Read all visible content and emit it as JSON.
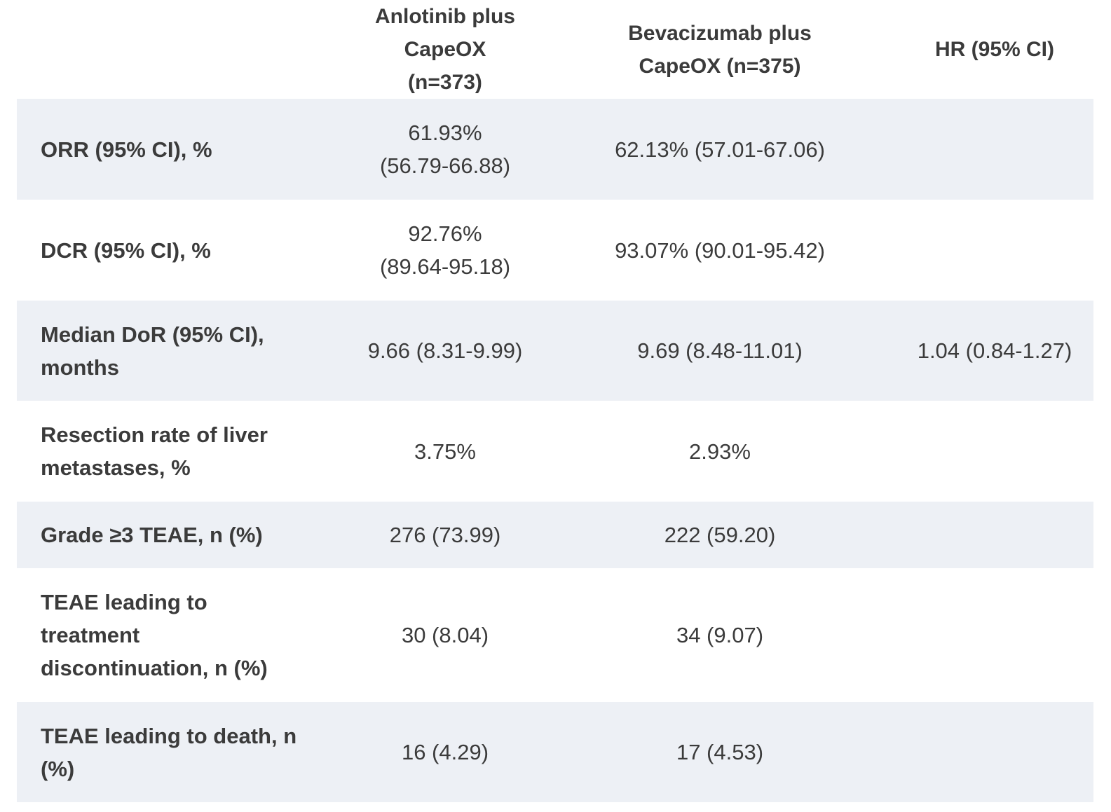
{
  "table": {
    "headers": [
      "",
      "Anlotinib plus CapeOX (n=373)",
      "Bevacizumab plus CapeOX (n=375)",
      "HR (95% CI)"
    ],
    "rows": [
      {
        "label": "ORR (95% CI), %",
        "anlotinib": "61.93% (56.79-66.88)",
        "bevacizumab": "62.13% (57.01-67.06)",
        "hr": ""
      },
      {
        "label": "DCR (95% CI), %",
        "anlotinib": "92.76% (89.64-95.18)",
        "bevacizumab": "93.07% (90.01-95.42)",
        "hr": ""
      },
      {
        "label": "Median DoR (95% CI), months",
        "anlotinib": "9.66 (8.31-9.99)",
        "bevacizumab": "9.69 (8.48-11.01)",
        "hr": "1.04 (0.84-1.27)"
      },
      {
        "label": "Resection rate of liver metastases, %",
        "anlotinib": "3.75%",
        "bevacizumab": "2.93%",
        "hr": ""
      },
      {
        "label": "Grade ≥3 TEAE, n (%)",
        "anlotinib": "276 (73.99)",
        "bevacizumab": "222 (59.20)",
        "hr": ""
      },
      {
        "label": "TEAE leading to treatment discontinuation, n (%)",
        "anlotinib": "30 (8.04)",
        "bevacizumab": "34 (9.07)",
        "hr": ""
      },
      {
        "label": "TEAE leading to death, n (%)",
        "anlotinib": "16 (4.29)",
        "bevacizumab": "17 (4.53)",
        "hr": ""
      }
    ]
  },
  "colors": {
    "shaded_row": "#edf0f5",
    "text": "#3b3b3b"
  }
}
